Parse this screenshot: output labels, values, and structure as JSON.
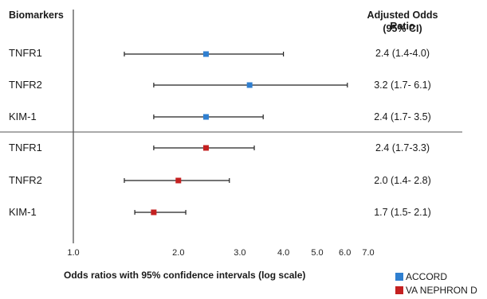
{
  "chart_data": {
    "type": "forest",
    "header_left": "Biomarkers",
    "header_right_line1": "Adjusted Odds Ratio",
    "header_right_line2": "(95% CI)",
    "xlabel": "Odds ratios with 95% confidence intervals (log scale)",
    "xscale": "log",
    "xlim": [
      1.0,
      7.0
    ],
    "ticks": [
      "1.0",
      "2.0",
      "3.0",
      "4.0",
      "5.0",
      "6.0",
      "7.0"
    ],
    "tick_values": [
      1,
      2,
      3,
      4,
      5,
      6,
      7
    ],
    "legend": [
      {
        "label": "ACCORD",
        "color": "#2f7fd0"
      },
      {
        "label": "VA NEPHRON D",
        "color": "#c42020"
      }
    ],
    "rows": [
      {
        "name": "TNFR1",
        "or": 2.4,
        "lo": 1.4,
        "hi": 4.0,
        "ci_text": "2.4 (1.4-4.0)",
        "series": "ACCORD"
      },
      {
        "name": "TNFR2",
        "or": 3.2,
        "lo": 1.7,
        "hi": 6.1,
        "ci_text": "3.2 (1.7- 6.1)",
        "series": "ACCORD"
      },
      {
        "name": "KIM-1",
        "or": 2.4,
        "lo": 1.7,
        "hi": 3.5,
        "ci_text": "2.4 (1.7- 3.5)",
        "series": "ACCORD"
      },
      {
        "name": "TNFR1",
        "or": 2.4,
        "lo": 1.7,
        "hi": 3.3,
        "ci_text": "2.4 (1.7-3.3)",
        "series": "VA NEPHRON D"
      },
      {
        "name": "TNFR2",
        "or": 2.0,
        "lo": 1.4,
        "hi": 2.8,
        "ci_text": "2.0 (1.4- 2.8)",
        "series": "VA NEPHRON D"
      },
      {
        "name": "KIM-1",
        "or": 1.7,
        "lo": 1.5,
        "hi": 2.1,
        "ci_text": "1.7 (1.5- 2.1)",
        "series": "VA NEPHRON D"
      }
    ]
  }
}
